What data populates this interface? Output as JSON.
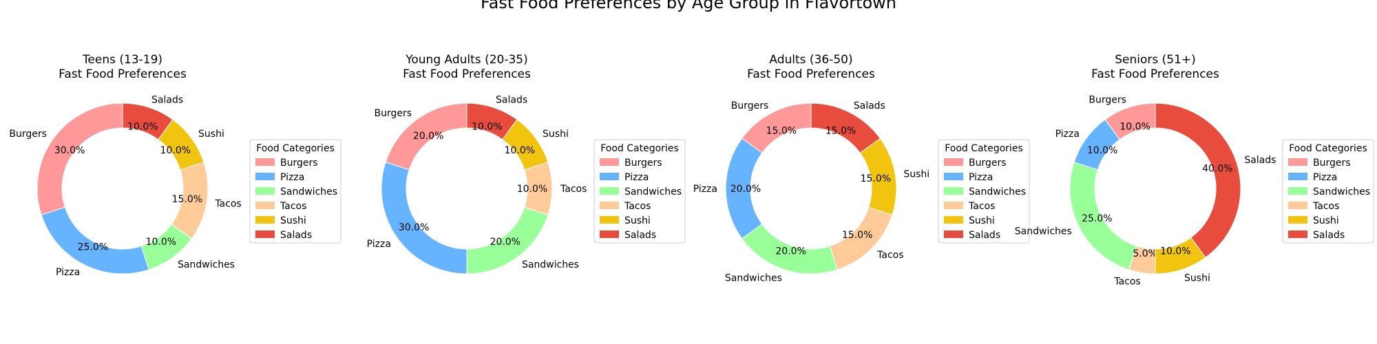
{
  "figure": {
    "suptitle": "Fast Food Preferences by Age Group in Flavortown"
  },
  "chart_data": [
    {
      "type": "pie",
      "title": "Teens (13-19)\nFast Food Preferences",
      "categories": [
        "Burgers",
        "Pizza",
        "Sandwiches",
        "Tacos",
        "Sushi",
        "Salads"
      ],
      "values": [
        30,
        25,
        10,
        15,
        10,
        10
      ],
      "colors": [
        "#ff9999",
        "#66b3ff",
        "#99ff99",
        "#ffcc99",
        "#f1c40f",
        "#e74c3c"
      ],
      "legend_title": "Food Categories",
      "legend_placement": "right",
      "value_format": "percent-1-decimal",
      "donut": true
    },
    {
      "type": "pie",
      "title": "Young Adults (20-35)\nFast Food Preferences",
      "categories": [
        "Burgers",
        "Pizza",
        "Sandwiches",
        "Tacos",
        "Sushi",
        "Salads"
      ],
      "values": [
        20,
        30,
        20,
        10,
        10,
        10
      ],
      "colors": [
        "#ff9999",
        "#66b3ff",
        "#99ff99",
        "#ffcc99",
        "#f1c40f",
        "#e74c3c"
      ],
      "legend_title": "Food Categories",
      "legend_placement": "right",
      "value_format": "percent-1-decimal",
      "donut": true
    },
    {
      "type": "pie",
      "title": "Adults (36-50)\nFast Food Preferences",
      "categories": [
        "Burgers",
        "Pizza",
        "Sandwiches",
        "Tacos",
        "Sushi",
        "Salads"
      ],
      "values": [
        15,
        20,
        20,
        15,
        15,
        15
      ],
      "colors": [
        "#ff9999",
        "#66b3ff",
        "#99ff99",
        "#ffcc99",
        "#f1c40f",
        "#e74c3c"
      ],
      "legend_title": "Food Categories",
      "legend_placement": "right",
      "value_format": "percent-1-decimal",
      "donut": true
    },
    {
      "type": "pie",
      "title": "Seniors (51+)\nFast Food Preferences",
      "categories": [
        "Burgers",
        "Pizza",
        "Sandwiches",
        "Tacos",
        "Sushi",
        "Salads"
      ],
      "values": [
        10,
        10,
        25,
        5,
        10,
        40
      ],
      "colors": [
        "#ff9999",
        "#66b3ff",
        "#99ff99",
        "#ffcc99",
        "#f1c40f",
        "#e74c3c"
      ],
      "legend_title": "Food Categories",
      "legend_placement": "right",
      "value_format": "percent-1-decimal",
      "donut": true
    }
  ]
}
